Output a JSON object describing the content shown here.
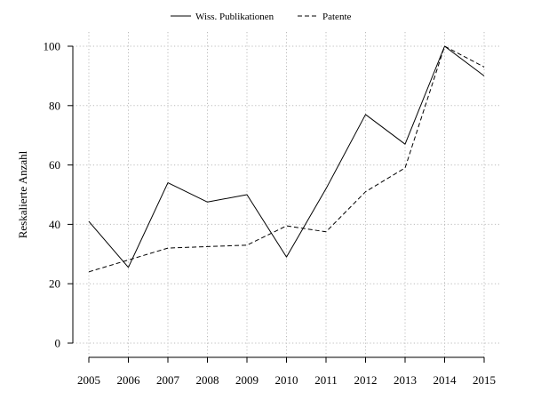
{
  "chart_data": {
    "type": "line",
    "x": [
      2005,
      2006,
      2007,
      2008,
      2009,
      2010,
      2011,
      2012,
      2013,
      2014,
      2015
    ],
    "xticks": [
      "2005",
      "2006",
      "2007",
      "2008",
      "2009",
      "2010",
      "2011",
      "2012",
      "2013",
      "2014",
      "2015"
    ],
    "yticks": [
      "0",
      "20",
      "40",
      "60",
      "80",
      "100"
    ],
    "ylim": [
      0,
      100
    ],
    "ylabel": "Reskalierte Anzahl",
    "xlabel": "",
    "grid": true,
    "legend_position": "top-center",
    "series": [
      {
        "name": "Wiss. Publikationen",
        "line_style": "solid",
        "color": "#000000",
        "values": [
          41,
          25.5,
          54,
          47.5,
          50,
          29,
          52,
          77,
          67,
          100,
          90
        ]
      },
      {
        "name": "Patente",
        "line_style": "dashed",
        "color": "#000000",
        "values": [
          24,
          28,
          32,
          32.5,
          33,
          39.5,
          37.5,
          51,
          59,
          100,
          93
        ]
      }
    ]
  }
}
